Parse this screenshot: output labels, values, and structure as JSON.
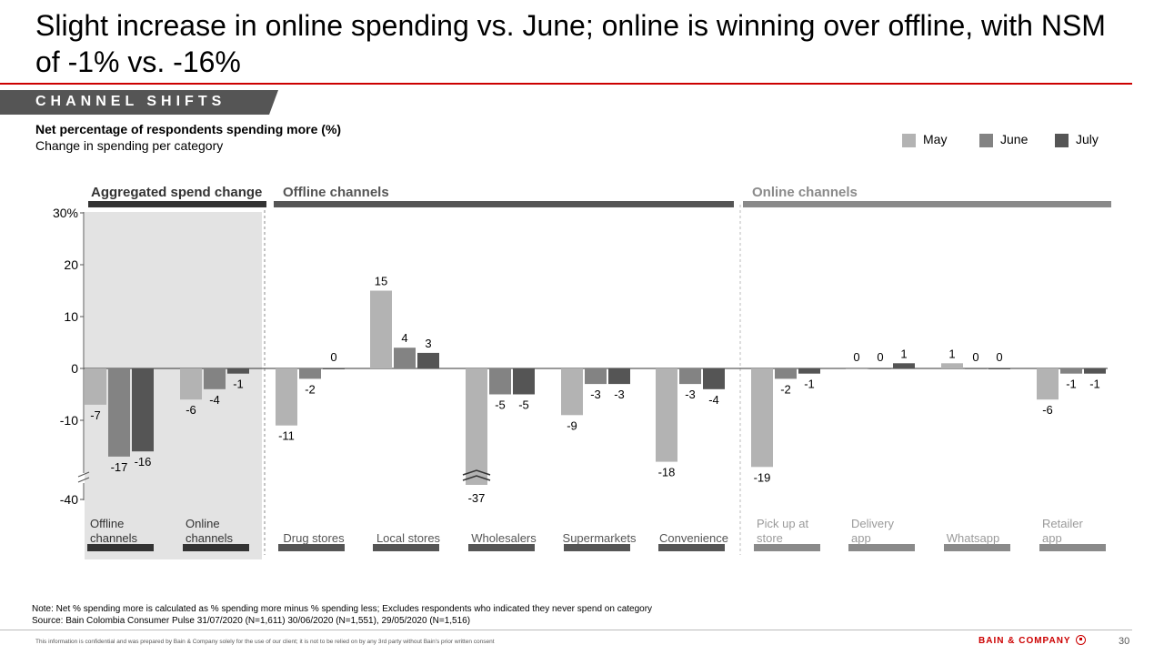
{
  "title": "Slight increase in online spending vs. June; online is winning over offline, with NSM of -1% vs. -16%",
  "section_tag": "CHANNEL SHIFTS",
  "subtitle": "Net percentage of respondents spending more (%)",
  "subtitle2": "Change in spending per category",
  "legend": [
    {
      "label": "May",
      "color": "#b3b3b3"
    },
    {
      "label": "June",
      "color": "#838383"
    },
    {
      "label": "July",
      "color": "#555555"
    }
  ],
  "chart_data": {
    "type": "bar",
    "y_tick_labels": [
      "30%",
      "20",
      "10",
      "0",
      "-10",
      "-40"
    ],
    "ylim": [
      -40,
      30
    ],
    "axis_break": "between -20 and -40",
    "series_names": [
      "May",
      "June",
      "July"
    ],
    "groups": [
      {
        "name": "Aggregated spend change",
        "categories": [
          {
            "label": "Offline channels",
            "values": [
              -7,
              -17,
              -16
            ]
          },
          {
            "label": "Online channels",
            "values": [
              -6,
              -4,
              -1
            ]
          }
        ]
      },
      {
        "name": "Offline channels",
        "categories": [
          {
            "label": "Drug stores",
            "values": [
              -11,
              -2,
              0
            ]
          },
          {
            "label": "Local stores",
            "values": [
              15,
              4,
              3
            ]
          },
          {
            "label": "Wholesalers",
            "values": [
              -37,
              -5,
              -5
            ]
          },
          {
            "label": "Supermarkets",
            "values": [
              -9,
              -3,
              -3
            ]
          },
          {
            "label": "Convenience",
            "values": [
              -18,
              -3,
              -4
            ]
          }
        ]
      },
      {
        "name": "Online channels",
        "categories": [
          {
            "label": "Pick up at store",
            "values": [
              -19,
              -2,
              -1
            ]
          },
          {
            "label": "Delivery app",
            "values": [
              0,
              0,
              1
            ]
          },
          {
            "label": "Whatsapp",
            "values": [
              1,
              0,
              0
            ]
          },
          {
            "label": "Retailer app",
            "values": [
              -6,
              -1,
              -1
            ]
          }
        ]
      }
    ]
  },
  "note": "Note: Net % spending more is calculated as % spending more minus % spending less; Excludes respondents who indicated they never spend on category",
  "source": "Source: Bain Colombia Consumer Pulse 31/07/2020 (N=1,611) 30/06/2020 (N=1,551), 29/05/2020 (N=1,516)",
  "disclaimer": "This information is confidential and was prepared by Bain & Company solely for the use of our client; it is not to be relied on by any 3rd party without Bain's prior written consent",
  "brand": "BAIN & COMPANY",
  "page_number": "30"
}
